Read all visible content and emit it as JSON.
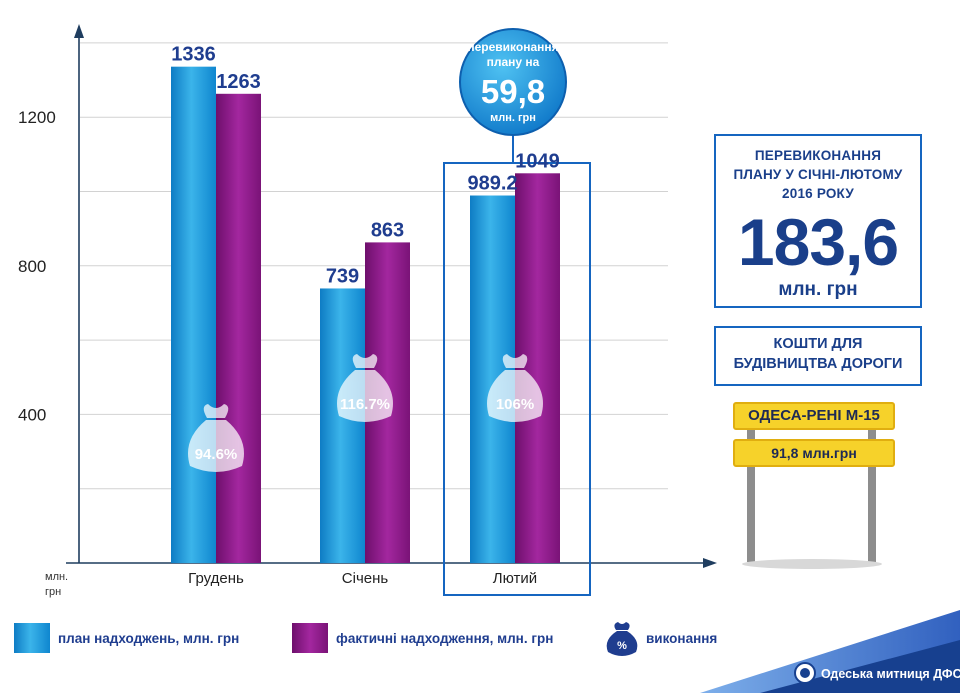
{
  "chart_data": {
    "type": "bar",
    "categories": [
      "Грудень",
      "Січень",
      "Лютий"
    ],
    "series": [
      {
        "name": "план надходжень, млн. грн",
        "values": [
          1336,
          739,
          989.2
        ],
        "value_labels": [
          "1336",
          "739",
          "989.2"
        ],
        "color": "#1a9ad9"
      },
      {
        "name": "фактичні надходження, млн. грн",
        "values": [
          1263,
          863,
          1049
        ],
        "value_labels": [
          "1263",
          "863",
          "1049"
        ],
        "color": "#8e1a8a"
      }
    ],
    "execution": {
      "name": "виконання",
      "labels": [
        "94.6%",
        "116.7%",
        "106%"
      ]
    },
    "yticks": [
      "400",
      "800",
      "1200"
    ],
    "ytick_values": [
      400,
      800,
      1200
    ],
    "ylim": [
      0,
      1500
    ],
    "yunit": [
      "млн.",
      "грн"
    ],
    "highlight_category": "Лютий",
    "callout": {
      "lines": [
        "перевиконання",
        "плану на"
      ],
      "value": "59,8",
      "unit": "млн. грн"
    },
    "grid": true
  },
  "summary": {
    "title_lines": [
      "ПЕРЕВИКОНАННЯ",
      "ПЛАНУ У СІЧНІ-ЛЮТОМУ",
      "2016 РОКУ"
    ],
    "value": "183,6",
    "unit": "млн. грн"
  },
  "funds": {
    "title_lines": [
      "КОШТИ ДЛЯ",
      "БУДІВНИЦТВА ДОРОГИ"
    ],
    "road_sign": "ОДЕСА-РЕНІ  М-15",
    "amount_sign": "91,8 млн.грн"
  },
  "legend": {
    "plan": "план надходжень, млн. грн",
    "fact": "фактичні надходження, млн. грн",
    "execution": "виконання",
    "execution_icon_text": "%"
  },
  "footer": {
    "org": "Одеська митниця ДФС"
  },
  "colors": {
    "plan": "#1a9ad9",
    "fact": "#8e1a8a",
    "accent": "#1565c0",
    "label": "#1f3d8f",
    "sign": "#f6d22a"
  }
}
